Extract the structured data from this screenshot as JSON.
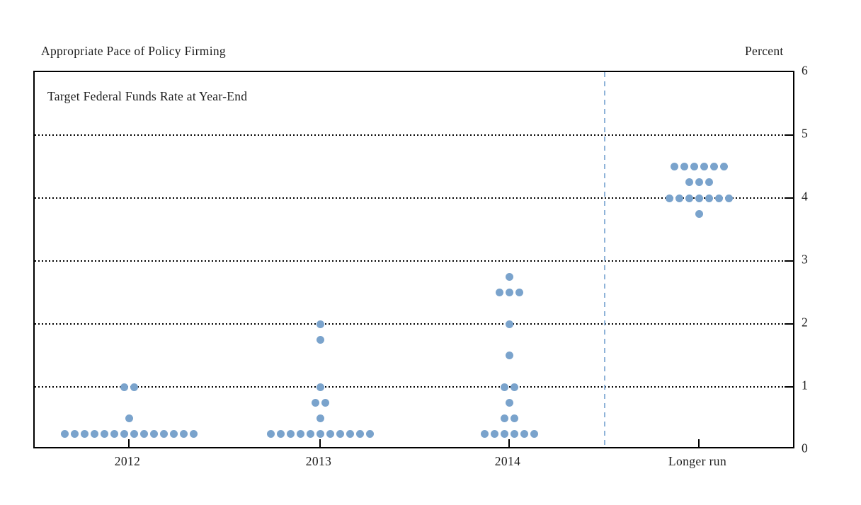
{
  "header": {
    "title": "Appropriate Pace of Policy Firming",
    "unit_label": "Percent"
  },
  "plot": {
    "inner_label": "Target Federal Funds Rate at Year-End"
  },
  "chart_data": {
    "type": "scatter",
    "subtype": "fomc-dot-plot",
    "title": "Appropriate Pace of Policy Firming",
    "inner_label": "Target Federal Funds Rate at Year-End",
    "unit_label": "Percent",
    "xlabel": "",
    "ylabel": "Percent",
    "ylim": [
      0,
      6
    ],
    "ytick_labels": [
      "6",
      "5",
      "4",
      "3",
      "2",
      "1",
      "0"
    ],
    "ytick_values": [
      6,
      5,
      4,
      3,
      2,
      1,
      0
    ],
    "gridline_levels": [
      5,
      4,
      3,
      2,
      1
    ],
    "grid": "dotted-horizontal",
    "categories": [
      "2012",
      "2013",
      "2014",
      "Longer run"
    ],
    "divider_after_category": "2014",
    "dot_color": "#7aa3cc",
    "divider_color": "#8fb3d8",
    "series": [
      {
        "category": "2012",
        "distribution": [
          {
            "rate": 0.25,
            "count": 14
          },
          {
            "rate": 0.5,
            "count": 1
          },
          {
            "rate": 1.0,
            "count": 2
          }
        ]
      },
      {
        "category": "2013",
        "distribution": [
          {
            "rate": 0.25,
            "count": 11
          },
          {
            "rate": 0.5,
            "count": 1
          },
          {
            "rate": 0.75,
            "count": 2
          },
          {
            "rate": 1.0,
            "count": 1
          },
          {
            "rate": 1.75,
            "count": 1
          },
          {
            "rate": 2.0,
            "count": 1
          }
        ]
      },
      {
        "category": "2014",
        "distribution": [
          {
            "rate": 0.25,
            "count": 6
          },
          {
            "rate": 0.5,
            "count": 2
          },
          {
            "rate": 0.75,
            "count": 1
          },
          {
            "rate": 1.0,
            "count": 2
          },
          {
            "rate": 1.5,
            "count": 1
          },
          {
            "rate": 2.0,
            "count": 1
          },
          {
            "rate": 2.5,
            "count": 3
          },
          {
            "rate": 2.75,
            "count": 1
          }
        ]
      },
      {
        "category": "Longer run",
        "distribution": [
          {
            "rate": 3.75,
            "count": 1
          },
          {
            "rate": 4.0,
            "count": 7
          },
          {
            "rate": 4.25,
            "count": 3
          },
          {
            "rate": 4.5,
            "count": 6
          }
        ]
      }
    ]
  }
}
